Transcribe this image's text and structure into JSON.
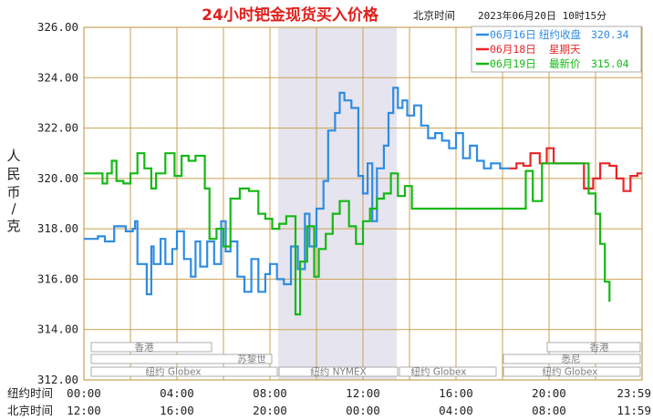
{
  "header": {
    "title": "24小时钯金现货买入价格",
    "tz": "北京时间",
    "datetime": "2023年06月20日 10时15分"
  },
  "ylabel_chars": [
    "人",
    "民",
    "币",
    "/",
    "克"
  ],
  "row_labels": {
    "ny": "纽约时间",
    "bj": "北京时间"
  },
  "x_ticks": [
    {
      "ny": "00:00",
      "bj": "12:00"
    },
    {
      "ny": "04:00",
      "bj": "16:00"
    },
    {
      "ny": "08:00",
      "bj": "20:00"
    },
    {
      "ny": "12:00",
      "bj": "00:00"
    },
    {
      "ny": "16:00",
      "bj": "04:00"
    },
    {
      "ny": "20:00",
      "bj": "08:00"
    },
    {
      "ny": "23:59",
      "bj": "11:59"
    }
  ],
  "sessions": {
    "hk1": "香港",
    "zurich": "苏黎世",
    "globex1": "纽约 Globex",
    "nymex": "纽约 NYMEX",
    "globex2": "纽约 Globex",
    "sydney": "悉尼",
    "hk2": "香港",
    "globex3": "纽约 Globex"
  },
  "colors": {
    "blue": "#2f8ce0",
    "red": "#e8262a",
    "green": "#14b814",
    "grid": "#c9a255",
    "title": "#e0201c",
    "shade": "#e6e4ee"
  },
  "chart_data": {
    "type": "line",
    "title": "24小时钯金现货买入价格",
    "ylabel": "人民币/克",
    "ylim": [
      312,
      326
    ],
    "yticks": [
      "326.00",
      "324.00",
      "322.00",
      "320.00",
      "318.00",
      "316.00",
      "314.00",
      "312.00"
    ],
    "x_unit": "hours since 00:00 New York time (x-axis tick labels 00:00–23:59)",
    "xlim": [
      0,
      24
    ],
    "legend_position": "top-right",
    "series": [
      {
        "name": "06月16日",
        "legend_tag": "纽约收盘",
        "legend_value": "320.34",
        "color": "blue",
        "x": [
          0,
          0.6,
          0.9,
          1.3,
          1.5,
          1.8,
          2.1,
          2.2,
          2.3,
          2.7,
          2.9,
          3.0,
          3.3,
          3.5,
          3.8,
          4.0,
          4.3,
          4.6,
          4.8,
          5.0,
          5.3,
          5.6,
          5.9,
          6.1,
          6.3,
          6.6,
          6.9,
          7.2,
          7.5,
          7.8,
          8.0,
          8.3,
          8.6,
          8.9,
          9.2,
          9.5,
          9.7,
          10.0,
          10.3,
          10.5,
          10.8,
          11.0,
          11.2,
          11.5,
          11.8,
          12.0,
          12.2,
          12.4,
          12.6,
          12.9,
          13.1,
          13.3,
          13.5,
          13.7,
          13.9,
          14.2,
          14.5,
          14.8,
          15.1,
          15.4,
          15.7,
          16.0,
          16.3,
          16.6,
          16.9,
          17.2,
          17.5,
          17.9,
          18.3
        ],
        "y": [
          317.6,
          317.7,
          317.5,
          318.1,
          318.1,
          317.9,
          318.0,
          318.3,
          316.6,
          315.4,
          317.3,
          316.6,
          317.6,
          316.6,
          317.2,
          317.9,
          316.8,
          316.1,
          317.5,
          316.5,
          317.5,
          316.6,
          318.3,
          317.1,
          317.5,
          316.1,
          315.5,
          316.8,
          315.5,
          316.2,
          316.6,
          316.0,
          315.8,
          317.3,
          316.4,
          318.6,
          317.3,
          318.8,
          319.9,
          321.9,
          322.6,
          323.4,
          323.1,
          322.8,
          320.1,
          319.4,
          320.6,
          318.3,
          320.4,
          321.3,
          322.6,
          323.6,
          322.8,
          323.1,
          322.5,
          322.9,
          322.1,
          321.6,
          321.8,
          321.5,
          321.2,
          321.8,
          320.8,
          321.3,
          320.7,
          320.4,
          320.6,
          320.4,
          320.4
        ]
      },
      {
        "name": "06月18日",
        "legend_tag": "星期天",
        "legend_value": "",
        "color": "red",
        "x": [
          18.3,
          18.6,
          18.9,
          19.2,
          19.6,
          19.9,
          20.2,
          20.5,
          21.2,
          21.5,
          21.9,
          22.2,
          22.6,
          22.9,
          23.2,
          23.5,
          23.8,
          24.0
        ],
        "y": [
          320.4,
          320.6,
          320.5,
          321.0,
          320.6,
          321.2,
          320.6,
          320.6,
          320.6,
          319.6,
          320.0,
          320.6,
          320.5,
          320.0,
          319.5,
          320.1,
          320.2,
          320.2
        ]
      },
      {
        "name": "06月19日",
        "legend_tag": "最新价",
        "legend_value": "315.04",
        "color": "green",
        "x": [
          0,
          0.8,
          1.0,
          1.2,
          1.4,
          1.7,
          2.0,
          2.3,
          2.6,
          2.9,
          3.1,
          3.5,
          3.9,
          4.2,
          4.5,
          4.8,
          5.2,
          5.4,
          5.7,
          6.0,
          6.3,
          6.7,
          7.1,
          7.5,
          7.8,
          8.1,
          8.4,
          8.7,
          9.1,
          9.3,
          9.6,
          9.9,
          10.1,
          10.4,
          10.7,
          11.0,
          11.4,
          11.7,
          12.0,
          12.3,
          12.6,
          12.9,
          13.2,
          13.5,
          13.8,
          14.1,
          14.5,
          15.0,
          15.5,
          16.0,
          16.6,
          17.2,
          17.9,
          18.3,
          18.7,
          19.0,
          19.3,
          19.7,
          20.3,
          20.9,
          21.4,
          21.7,
          22.0,
          22.2,
          22.4,
          22.6
        ],
        "y": [
          320.2,
          319.8,
          320.2,
          320.7,
          319.9,
          319.8,
          320.2,
          321.0,
          320.4,
          319.6,
          320.2,
          321.0,
          320.1,
          320.9,
          320.7,
          320.9,
          319.6,
          317.6,
          318.0,
          317.3,
          319.2,
          319.6,
          319.5,
          318.6,
          318.4,
          318.0,
          318.2,
          318.5,
          314.6,
          316.7,
          318.1,
          316.1,
          317.2,
          317.8,
          318.6,
          319.1,
          318.1,
          317.4,
          318.3,
          318.8,
          319.2,
          319.4,
          320.2,
          319.3,
          319.7,
          318.8,
          318.8,
          318.8,
          318.8,
          318.8,
          318.8,
          318.8,
          318.8,
          318.8,
          318.8,
          320.3,
          319.1,
          320.6,
          320.6,
          320.6,
          320.6,
          319.4,
          318.6,
          317.4,
          315.9,
          315.1
        ]
      }
    ]
  }
}
